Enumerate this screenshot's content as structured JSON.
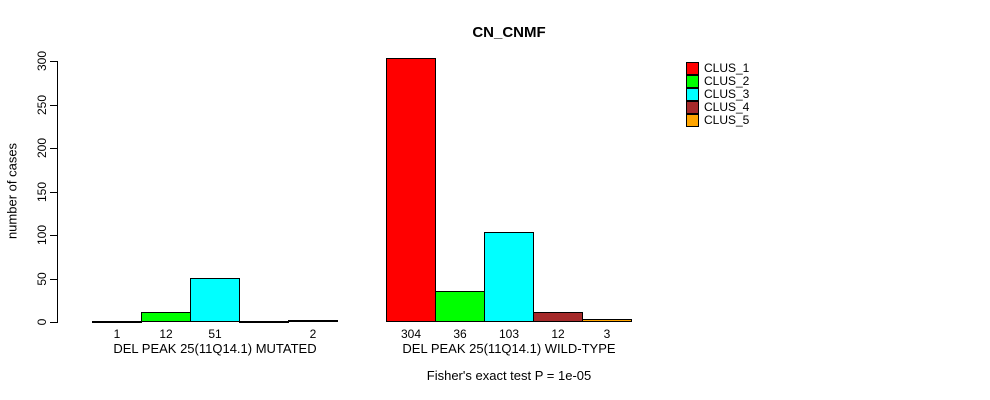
{
  "title": "CN_CNMF",
  "footer": "Fisher's exact test P = 1e-05",
  "y_axis": {
    "label": "number of cases",
    "ticks": [
      0,
      50,
      100,
      150,
      200,
      250,
      300
    ]
  },
  "chart_data": {
    "type": "bar",
    "title": "CN_CNMF",
    "ylabel": "number of cases",
    "ylim": [
      0,
      300
    ],
    "yticks": [
      0,
      50,
      100,
      150,
      200,
      250,
      300
    ],
    "grid": false,
    "legend_position": "right",
    "categories": [
      "DEL PEAK 25(11Q14.1) MUTATED",
      "DEL PEAK 25(11Q14.1) WILD-TYPE"
    ],
    "series": [
      {
        "name": "CLUS_1",
        "color": "#FF0000",
        "values": [
          1,
          304
        ]
      },
      {
        "name": "CLUS_2",
        "color": "#00FF00",
        "values": [
          12,
          36
        ]
      },
      {
        "name": "CLUS_3",
        "color": "#00FFFF",
        "values": [
          51,
          103
        ]
      },
      {
        "name": "CLUS_4",
        "color": "#A52A2A",
        "values": [
          0,
          12
        ]
      },
      {
        "name": "CLUS_5",
        "color": "#FFA500",
        "values": [
          2,
          3
        ]
      }
    ],
    "value_labels": [
      [
        "1",
        "12",
        "51",
        "",
        "2"
      ],
      [
        "304",
        "36",
        "103",
        "12",
        "3"
      ]
    ],
    "annotation": "Fisher's exact test P = 1e-05"
  }
}
